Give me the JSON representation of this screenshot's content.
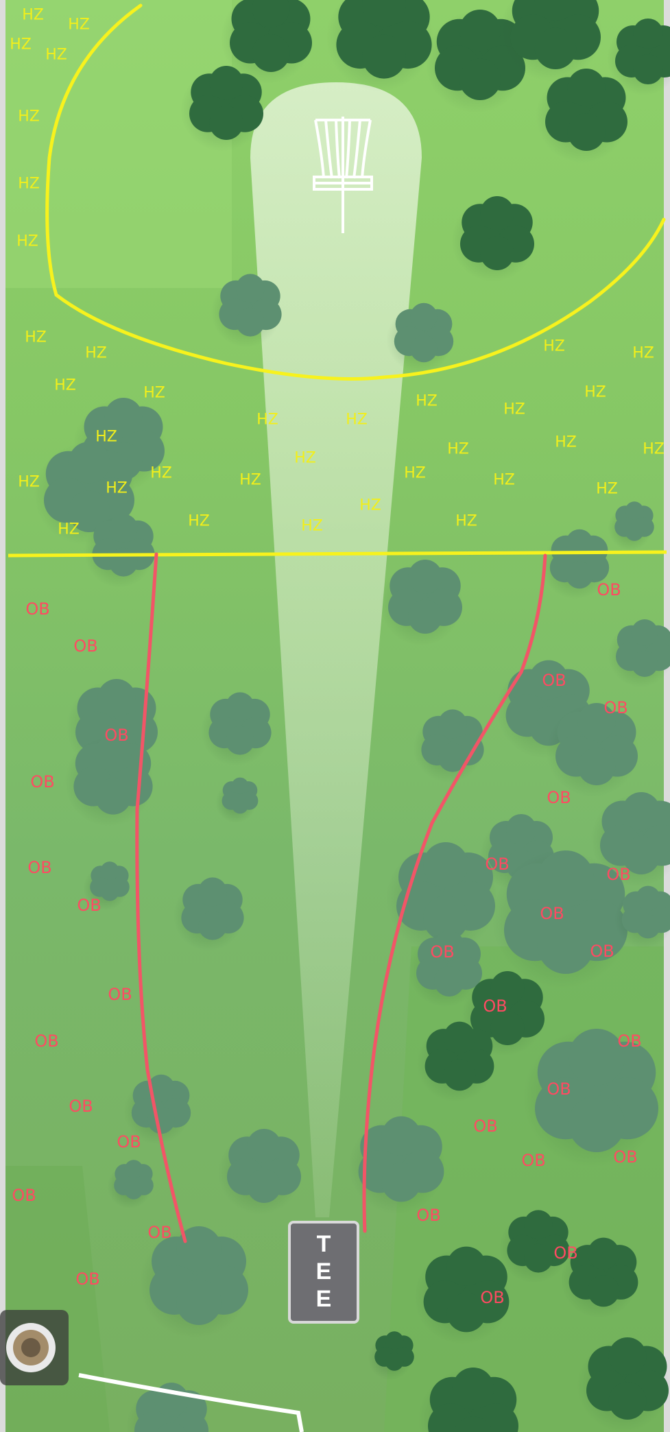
{
  "hole_map": {
    "tee_label": "T E E",
    "tee_letters": [
      "T",
      "E",
      "E"
    ],
    "hazard_label": "HZ",
    "out_of_bounds_label": "OB",
    "colors": {
      "grass_light": "#8fd06a",
      "grass_mid": "#78bb5b",
      "grass_dark": "#6aa85a",
      "tree_dark": "#2f6b3e",
      "tree_faded": "#5d9071",
      "fairway_corridor": "#e9f5dc",
      "hazard_line": "#f7f21d",
      "ob_line": "#f25567",
      "tee_sign": "#6e6e72"
    },
    "icons": [
      "basket-icon",
      "tee-sign",
      "bolt-icon"
    ]
  }
}
